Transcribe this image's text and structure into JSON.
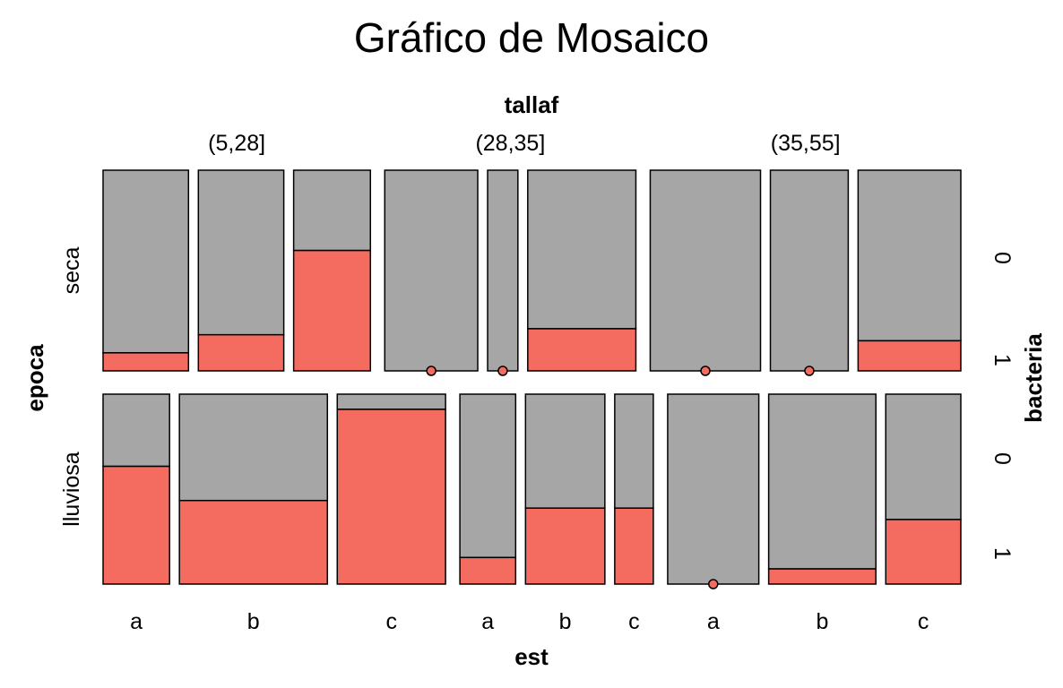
{
  "chart_data": {
    "type": "mosaic",
    "title": "Gráfico de Mosaico",
    "top_variable": "tallaf",
    "bottom_variable": "est",
    "left_variable": "epoca",
    "right_variable": "bacteria",
    "tallaf_levels": [
      "(5,28]",
      "(28,35]",
      "(35,55]"
    ],
    "est_levels": [
      "a",
      "b",
      "c"
    ],
    "epoca_levels": [
      "seca",
      "lluviosa"
    ],
    "bacteria_levels": [
      "0",
      "1"
    ],
    "colors": {
      "bacteria_0": "#a6a6a6",
      "bacteria_1": "#f46b60"
    },
    "cells": [
      {
        "tallaf": "(5,28]",
        "est": "a",
        "epoca": "seca",
        "width": 0.079,
        "prop_bacteria_1": 0.09
      },
      {
        "tallaf": "(5,28]",
        "est": "b",
        "epoca": "seca",
        "width": 0.079,
        "prop_bacteria_1": 0.18
      },
      {
        "tallaf": "(5,28]",
        "est": "c",
        "epoca": "seca",
        "width": 0.071,
        "prop_bacteria_1": 0.6
      },
      {
        "tallaf": "(28,35]",
        "est": "a",
        "epoca": "seca",
        "width": 0.086,
        "prop_bacteria_1": 0.0
      },
      {
        "tallaf": "(28,35]",
        "est": "b",
        "epoca": "seca",
        "width": 0.028,
        "prop_bacteria_1": 0.0
      },
      {
        "tallaf": "(28,35]",
        "est": "c",
        "epoca": "seca",
        "width": 0.1,
        "prop_bacteria_1": 0.21
      },
      {
        "tallaf": "(35,55]",
        "est": "a",
        "epoca": "seca",
        "width": 0.102,
        "prop_bacteria_1": 0.0
      },
      {
        "tallaf": "(35,55]",
        "est": "b",
        "epoca": "seca",
        "width": 0.072,
        "prop_bacteria_1": 0.0
      },
      {
        "tallaf": "(35,55]",
        "est": "c",
        "epoca": "seca",
        "width": 0.095,
        "prop_bacteria_1": 0.15
      },
      {
        "tallaf": "(5,28]",
        "est": "a",
        "epoca": "lluviosa",
        "width": 0.062,
        "prop_bacteria_1": 0.62
      },
      {
        "tallaf": "(5,28]",
        "est": "b",
        "epoca": "lluviosa",
        "width": 0.138,
        "prop_bacteria_1": 0.44
      },
      {
        "tallaf": "(5,28]",
        "est": "c",
        "epoca": "lluviosa",
        "width": 0.101,
        "prop_bacteria_1": 0.92
      },
      {
        "tallaf": "(28,35]",
        "est": "a",
        "epoca": "lluviosa",
        "width": 0.052,
        "prop_bacteria_1": 0.14
      },
      {
        "tallaf": "(28,35]",
        "est": "b",
        "epoca": "lluviosa",
        "width": 0.074,
        "prop_bacteria_1": 0.4
      },
      {
        "tallaf": "(28,35]",
        "est": "c",
        "epoca": "lluviosa",
        "width": 0.036,
        "prop_bacteria_1": 0.4
      },
      {
        "tallaf": "(35,55]",
        "est": "a",
        "epoca": "lluviosa",
        "width": 0.085,
        "prop_bacteria_1": 0.0
      },
      {
        "tallaf": "(35,55]",
        "est": "b",
        "epoca": "lluviosa",
        "width": 0.1,
        "prop_bacteria_1": 0.08
      },
      {
        "tallaf": "(35,55]",
        "est": "c",
        "epoca": "lluviosa",
        "width": 0.07,
        "prop_bacteria_1": 0.34
      }
    ]
  }
}
